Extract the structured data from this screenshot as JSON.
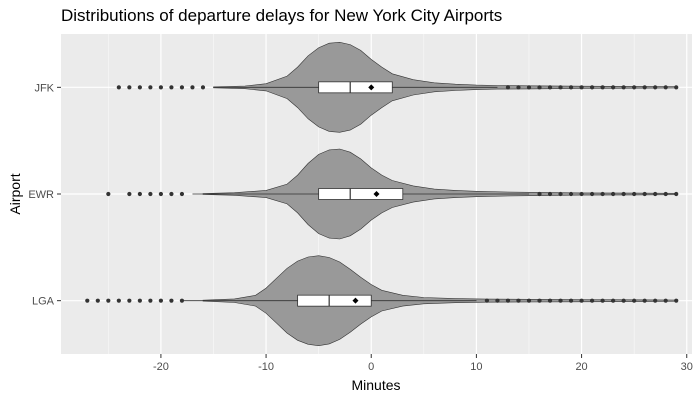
{
  "chart_data": {
    "type": "violin",
    "title": "Distributions of departure delays for New York City Airports",
    "xlabel": "Minutes",
    "ylabel": "Airport",
    "xlim": [
      -29.5,
      30.5
    ],
    "x_ticks": [
      -20,
      -10,
      0,
      10,
      20,
      30
    ],
    "x_tick_labels": [
      "-20",
      "-10",
      "0",
      "10",
      "20",
      "30"
    ],
    "categories": [
      "JFK",
      "EWR",
      "LGA"
    ],
    "grid": true,
    "legend": "none",
    "colors": {
      "panel": "#ebebeb",
      "grid": "#ffffff",
      "violin": "#999999",
      "box": "#ffffff",
      "points": "#333333"
    },
    "series": [
      {
        "category": "JFK",
        "q1": -5,
        "median": -2,
        "q3": 2,
        "mean": 0,
        "whisker_low": -15,
        "whisker_high": 12,
        "outliers_low": [
          -24,
          -23,
          -22,
          -21,
          -20,
          -19,
          -18,
          -17,
          -16
        ],
        "outliers_high": [
          13,
          14,
          15,
          16,
          17,
          18,
          19,
          20,
          21,
          22,
          23,
          24,
          25,
          26,
          27,
          28,
          29
        ],
        "density": [
          [
            -15,
            0.01
          ],
          [
            -12,
            0.03
          ],
          [
            -10,
            0.08
          ],
          [
            -8,
            0.25
          ],
          [
            -7,
            0.45
          ],
          [
            -6,
            0.7
          ],
          [
            -5,
            0.88
          ],
          [
            -4,
            0.98
          ],
          [
            -3,
            1.0
          ],
          [
            -2,
            0.95
          ],
          [
            -1,
            0.82
          ],
          [
            0,
            0.62
          ],
          [
            1,
            0.45
          ],
          [
            2,
            0.3
          ],
          [
            4,
            0.17
          ],
          [
            6,
            0.1
          ],
          [
            8,
            0.07
          ],
          [
            10,
            0.05
          ],
          [
            12,
            0.04
          ],
          [
            15,
            0.035
          ],
          [
            20,
            0.025
          ],
          [
            25,
            0.02
          ],
          [
            29,
            0.015
          ]
        ]
      },
      {
        "category": "EWR",
        "q1": -5,
        "median": -2,
        "q3": 3,
        "mean": 0.5,
        "whisker_low": -17,
        "whisker_high": 15,
        "outliers_low": [
          -25,
          -23,
          -22,
          -21,
          -20,
          -19,
          -18
        ],
        "outliers_high": [
          16,
          17,
          18,
          19,
          20,
          21,
          22,
          23,
          24,
          25,
          26,
          27,
          28,
          29
        ],
        "density": [
          [
            -16,
            0.01
          ],
          [
            -13,
            0.03
          ],
          [
            -10,
            0.08
          ],
          [
            -8,
            0.22
          ],
          [
            -7,
            0.42
          ],
          [
            -6,
            0.68
          ],
          [
            -5,
            0.88
          ],
          [
            -4,
            0.98
          ],
          [
            -3,
            1.0
          ],
          [
            -2,
            0.93
          ],
          [
            -1,
            0.78
          ],
          [
            0,
            0.58
          ],
          [
            1,
            0.42
          ],
          [
            2,
            0.3
          ],
          [
            4,
            0.18
          ],
          [
            6,
            0.11
          ],
          [
            8,
            0.08
          ],
          [
            10,
            0.06
          ],
          [
            13,
            0.045
          ],
          [
            16,
            0.035
          ],
          [
            20,
            0.025
          ],
          [
            25,
            0.02
          ],
          [
            29,
            0.015
          ]
        ]
      },
      {
        "category": "LGA",
        "q1": -7,
        "median": -4,
        "q3": 0,
        "mean": -1.5,
        "whisker_low": -18,
        "whisker_high": 10,
        "outliers_low": [
          -27,
          -26,
          -25,
          -24,
          -23,
          -22,
          -21,
          -20,
          -19,
          -18
        ],
        "outliers_high": [
          11,
          12,
          13,
          14,
          15,
          16,
          17,
          18,
          19,
          20,
          21,
          22,
          23,
          24,
          25,
          26,
          27,
          28,
          29
        ],
        "density": [
          [
            -16,
            0.01
          ],
          [
            -13,
            0.04
          ],
          [
            -11,
            0.12
          ],
          [
            -10,
            0.28
          ],
          [
            -9,
            0.5
          ],
          [
            -8,
            0.72
          ],
          [
            -7,
            0.88
          ],
          [
            -6,
            0.97
          ],
          [
            -5,
            1.0
          ],
          [
            -4,
            0.96
          ],
          [
            -3,
            0.86
          ],
          [
            -2,
            0.7
          ],
          [
            -1,
            0.52
          ],
          [
            0,
            0.36
          ],
          [
            1,
            0.23
          ],
          [
            3,
            0.12
          ],
          [
            5,
            0.07
          ],
          [
            8,
            0.045
          ],
          [
            11,
            0.035
          ],
          [
            15,
            0.03
          ],
          [
            20,
            0.025
          ],
          [
            25,
            0.02
          ],
          [
            29,
            0.015
          ]
        ]
      }
    ]
  }
}
